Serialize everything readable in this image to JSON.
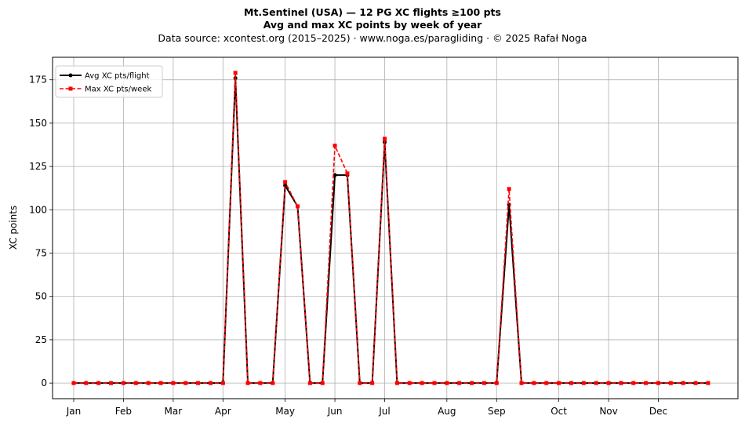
{
  "header": {
    "title": "Mt.Sentinel (USA)  —  12 PG XC flights ≥100 pts",
    "subtitle": "Avg and max XC points by week of year",
    "source": "Data source: xcontest.org (2015–2025)  ·  www.noga.es/paragliding  ·  © 2025 Rafał Noga"
  },
  "chart_data": {
    "type": "line",
    "title": "Mt.Sentinel (USA)  —  12 PG XC flights ≥100 pts",
    "subtitle": "Avg and max XC points by week of year",
    "xlabel": "",
    "ylabel": "XC points",
    "x_unit": "week of year",
    "xlim": [
      -1.7,
      53.4
    ],
    "ylim": [
      -9,
      188
    ],
    "x_ticks": [
      {
        "label": "Jan",
        "x": 0
      },
      {
        "label": "Feb",
        "x": 4
      },
      {
        "label": "Mar",
        "x": 8
      },
      {
        "label": "Apr",
        "x": 12
      },
      {
        "label": "May",
        "x": 17
      },
      {
        "label": "Jun",
        "x": 21
      },
      {
        "label": "Jul",
        "x": 25
      },
      {
        "label": "Aug",
        "x": 30
      },
      {
        "label": "Sep",
        "x": 34
      },
      {
        "label": "Oct",
        "x": 39
      },
      {
        "label": "Nov",
        "x": 43
      },
      {
        "label": "Dec",
        "x": 47
      }
    ],
    "y_ticks": [
      0,
      25,
      50,
      75,
      100,
      125,
      150,
      175
    ],
    "grid": true,
    "legend_position": "top-left",
    "x": [
      0,
      1,
      2,
      3,
      4,
      5,
      6,
      7,
      8,
      9,
      10,
      11,
      12,
      13,
      14,
      15,
      16,
      17,
      18,
      19,
      20,
      21,
      22,
      23,
      24,
      25,
      26,
      27,
      28,
      29,
      30,
      31,
      32,
      33,
      34,
      35,
      36,
      37,
      38,
      39,
      40,
      41,
      42,
      43,
      44,
      45,
      46,
      47,
      48,
      49,
      50,
      51
    ],
    "series": [
      {
        "name": "Avg XC pts/flight",
        "color": "#000000",
        "style": "solid",
        "marker": "circle",
        "values": [
          0,
          0,
          0,
          0,
          0,
          0,
          0,
          0,
          0,
          0,
          0,
          0,
          0,
          176,
          0,
          0,
          0,
          114,
          102,
          0,
          0,
          120,
          120,
          0,
          0,
          139,
          0,
          0,
          0,
          0,
          0,
          0,
          0,
          0,
          0,
          103,
          0,
          0,
          0,
          0,
          0,
          0,
          0,
          0,
          0,
          0,
          0,
          0,
          0,
          0,
          0,
          0
        ]
      },
      {
        "name": "Max XC pts/week",
        "color": "#ff0000",
        "style": "dashed",
        "marker": "square",
        "values": [
          0,
          0,
          0,
          0,
          0,
          0,
          0,
          0,
          0,
          0,
          0,
          0,
          0,
          179,
          0,
          0,
          0,
          116,
          102,
          0,
          0,
          137,
          121,
          0,
          0,
          141,
          0,
          0,
          0,
          0,
          0,
          0,
          0,
          0,
          0,
          112,
          0,
          0,
          0,
          0,
          0,
          0,
          0,
          0,
          0,
          0,
          0,
          0,
          0,
          0,
          0,
          0
        ]
      }
    ]
  }
}
